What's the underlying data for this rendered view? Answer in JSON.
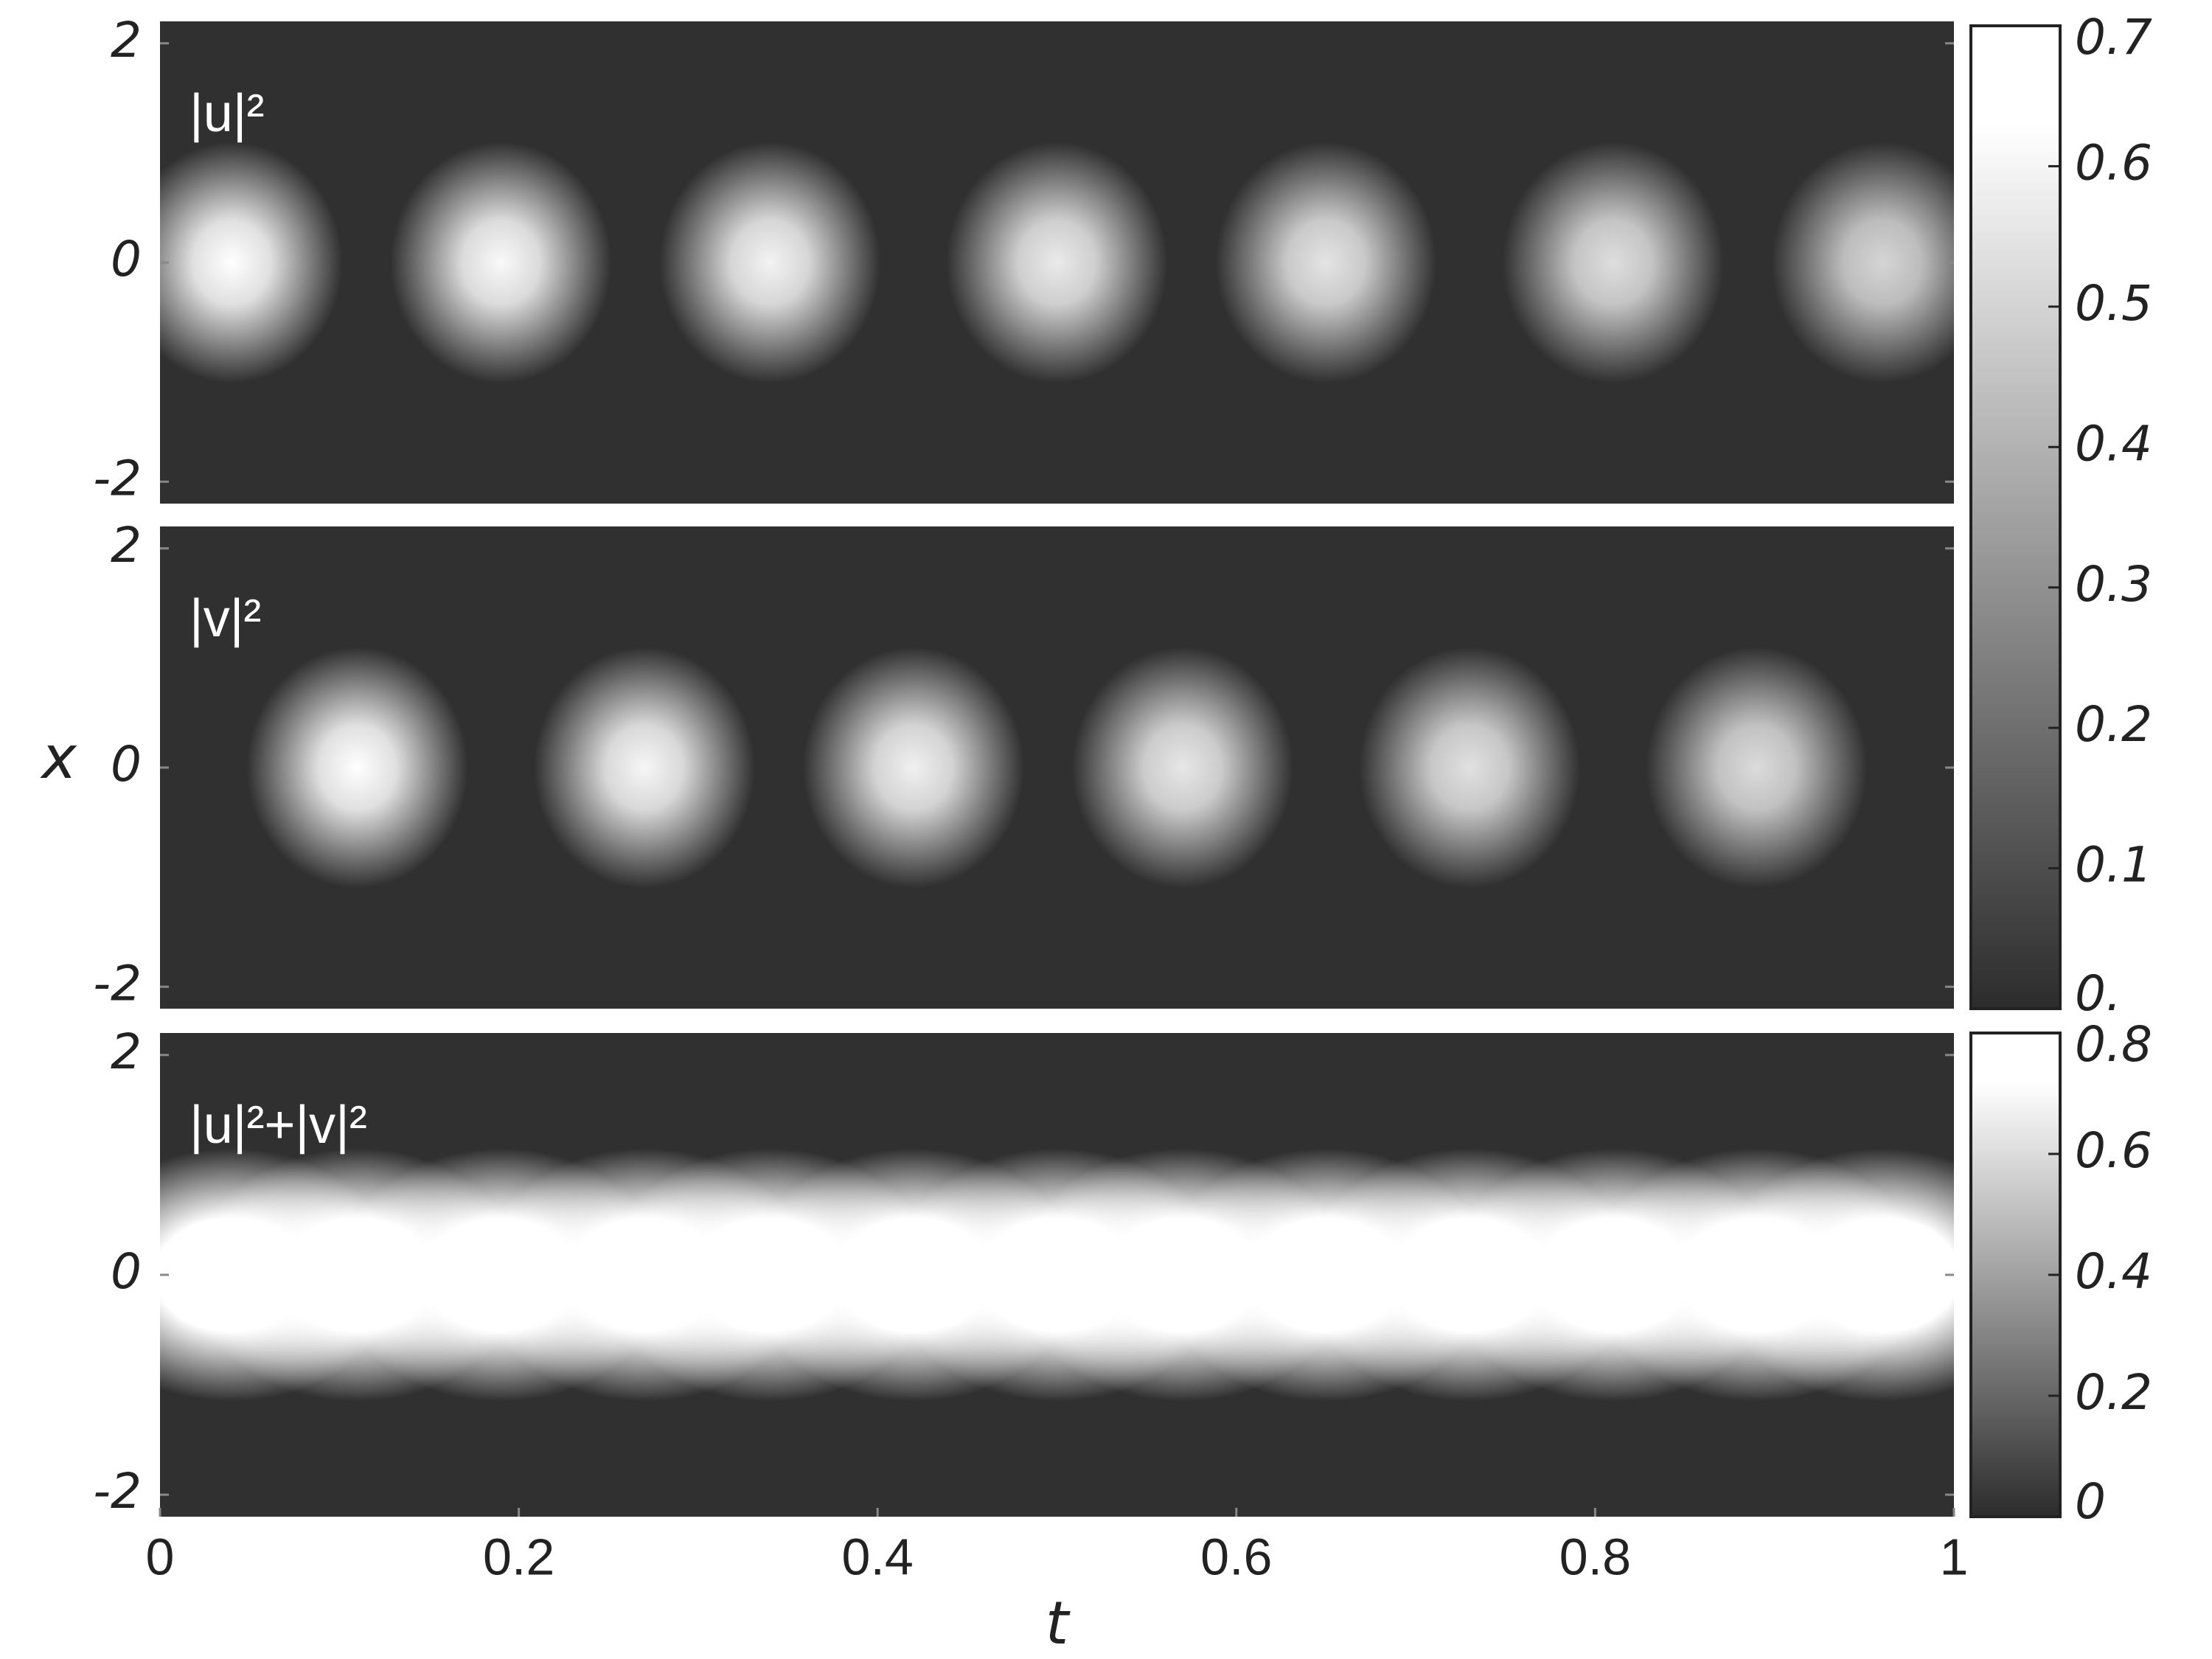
{
  "chart_data": [
    {
      "type": "heatmap",
      "annotation": "|u|²",
      "x": [
        0.04,
        0.19,
        0.34,
        0.5,
        0.65,
        0.81,
        0.96
      ],
      "values": [
        0.7,
        0.68,
        0.66,
        0.63,
        0.61,
        0.59,
        0.56
      ],
      "xlim": [
        0,
        1
      ],
      "ylim": [
        -2.2,
        2.2
      ],
      "yticks": [
        -2,
        0,
        2
      ],
      "zlim": [
        0,
        0.7
      ],
      "zticks": [
        {
          "value": 0,
          "label": "0."
        },
        0.1,
        0.2,
        0.3,
        0.4,
        0.5,
        0.6,
        0.7
      ]
    },
    {
      "type": "heatmap",
      "annotation": "|v|²",
      "ylabel": "x",
      "x": [
        0.11,
        0.27,
        0.42,
        0.57,
        0.73,
        0.89
      ],
      "values": [
        0.7,
        0.67,
        0.65,
        0.62,
        0.6,
        0.58
      ],
      "xlim": [
        0,
        1
      ],
      "ylim": [
        -2.2,
        2.2
      ],
      "yticks": [
        -2,
        0,
        2
      ],
      "zlim": [
        0,
        0.7
      ]
    },
    {
      "type": "heatmap",
      "annotation": "|u|²+|v|²",
      "xlabel": "t",
      "x": [
        0.04,
        0.11,
        0.19,
        0.27,
        0.34,
        0.42,
        0.5,
        0.57,
        0.65,
        0.73,
        0.81,
        0.89,
        0.96
      ],
      "values": [
        0.8,
        0.8,
        0.8,
        0.8,
        0.8,
        0.8,
        0.8,
        0.8,
        0.8,
        0.8,
        0.8,
        0.8,
        0.8
      ],
      "xlim": [
        0,
        1
      ],
      "ylim": [
        -2.2,
        2.2
      ],
      "yticks": [
        -2,
        0,
        2
      ],
      "xticks": [
        0,
        0.2,
        0.4,
        0.6,
        0.8,
        1
      ],
      "zlim": [
        0,
        0.8
      ],
      "zticks": [
        0,
        0.2,
        0.4,
        0.6,
        0.8
      ]
    }
  ]
}
